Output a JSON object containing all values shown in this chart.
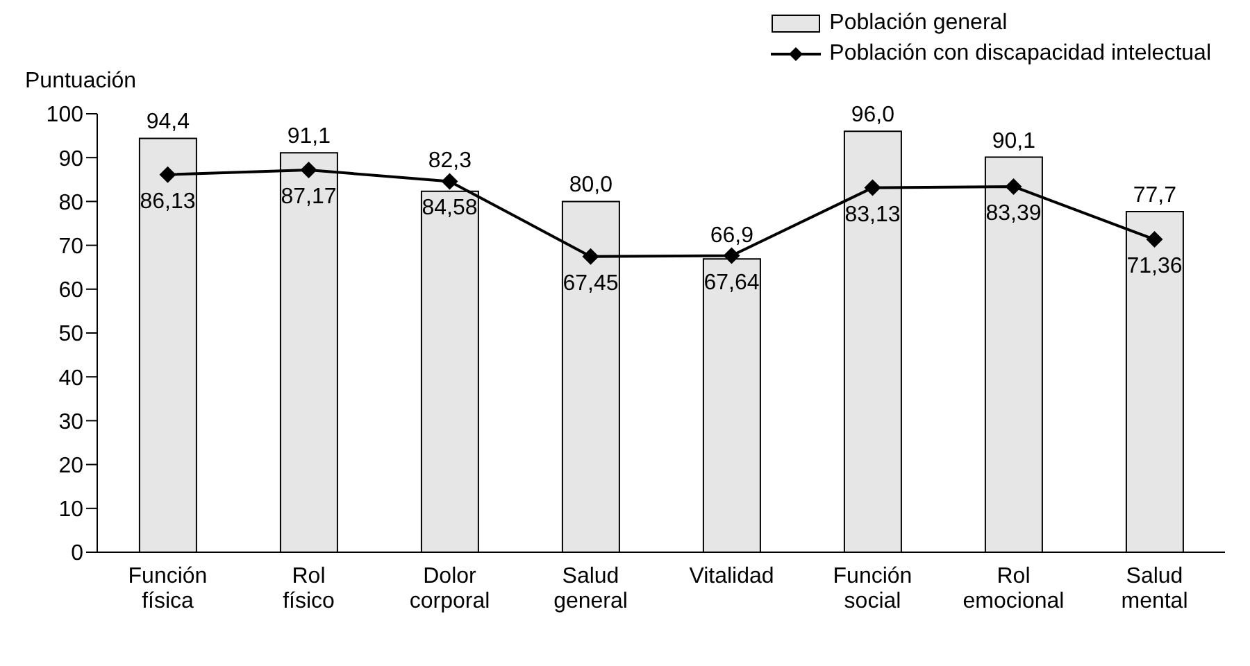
{
  "chart_data": {
    "type": "bar",
    "ylabel": "Puntuación",
    "categories": [
      "Función física",
      "Rol físico",
      "Dolor corporal",
      "Salud general",
      "Vitalidad",
      "Función social",
      "Rol emocional",
      "Salud mental"
    ],
    "series": [
      {
        "name": "Población general",
        "color": "#e6e6e6",
        "values": [
          94.4,
          91.1,
          82.3,
          80.0,
          66.9,
          96.0,
          90.1,
          77.7
        ],
        "value_labels": [
          "94,4",
          "91,1",
          "82,3",
          "80,0",
          "66,9",
          "96,0",
          "90,1",
          "77,7"
        ]
      },
      {
        "name": "Población con discapacidad intelectual",
        "type": "line",
        "color": "#000000",
        "marker": "diamond",
        "values": [
          86.13,
          87.17,
          84.58,
          67.45,
          67.64,
          83.13,
          83.39,
          71.36
        ],
        "value_labels": [
          "86,13",
          "87,17",
          "84,58",
          "67,45",
          "67,64",
          "83,13",
          "83,39",
          "71,36"
        ]
      }
    ],
    "ylim": [
      0,
      100
    ],
    "yticks": [
      0,
      10,
      20,
      30,
      40,
      50,
      60,
      70,
      80,
      90,
      100
    ],
    "legend": "top right"
  }
}
